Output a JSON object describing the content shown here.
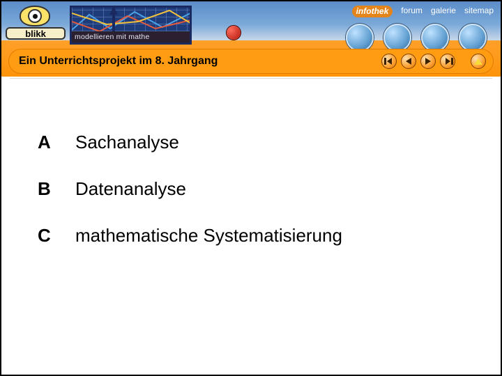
{
  "brand": {
    "name": "blikk"
  },
  "graph_box": {
    "caption": "modellieren mit mathe"
  },
  "nav_links": {
    "infothek": {
      "label": "infothek"
    },
    "forum": {
      "label": "forum"
    },
    "galerie": {
      "label": "galerie"
    },
    "sitemap": {
      "label": "sitemap"
    }
  },
  "title_bar": {
    "text": "Ein Unterrichtsprojekt im 8. Jahrgang"
  },
  "nav_circles": {
    "first": "first-button",
    "prev": "prev-button",
    "next": "next-button",
    "last": "last-button",
    "up": "up-button"
  },
  "toc": {
    "rows": [
      {
        "letter": "A",
        "label": "Sachanalyse"
      },
      {
        "letter": "B",
        "label": "Datenanalyse"
      },
      {
        "letter": "C",
        "label": "mathematische Systematisierung"
      }
    ]
  },
  "colors": {
    "orange": "#ff9c12",
    "blue_top": "#5a8cc8"
  }
}
